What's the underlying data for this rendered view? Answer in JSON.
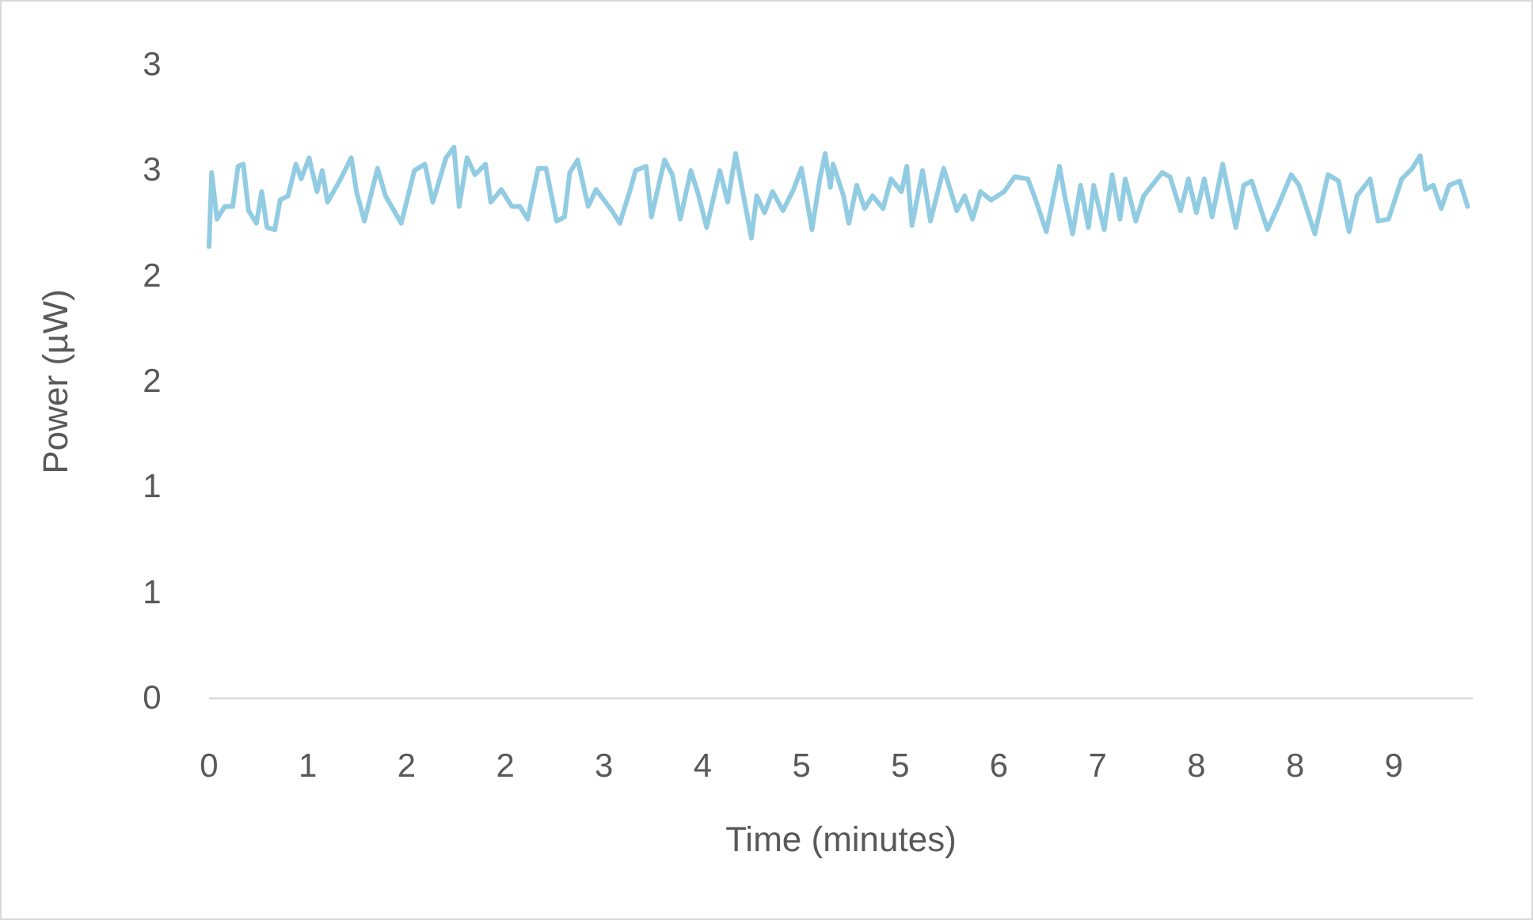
{
  "chart_data": {
    "type": "line",
    "xlabel": "Time (minutes)",
    "ylabel": "Power (µW)",
    "xlim": [
      0,
      9.6
    ],
    "xticks": [
      0,
      {
        "value": 0.75,
        "label": "1"
      },
      {
        "value": 1.5,
        "label": "2"
      },
      {
        "value": 2.25,
        "label": "2"
      },
      3,
      {
        "value": 3.75,
        "label": "4"
      },
      {
        "value": 4.5,
        "label": "5"
      },
      {
        "value": 5.25,
        "label": "5"
      },
      6,
      {
        "value": 6.75,
        "label": "7"
      },
      {
        "value": 7.5,
        "label": "8"
      },
      {
        "value": 8.25,
        "label": "8"
      },
      9
    ],
    "ylim": [
      0,
      3
    ],
    "yticks": [
      0,
      {
        "value": 0.5,
        "label": "1"
      },
      1,
      {
        "value": 1.5,
        "label": "2"
      },
      2,
      {
        "value": 2.5,
        "label": "3"
      },
      3
    ],
    "grid": false,
    "marker": "none",
    "line_style": "solid",
    "series": [
      {
        "color": "#92cce3",
        "x": [
          0,
          0.02,
          0.06,
          0.12,
          0.18,
          0.22,
          0.26,
          0.3,
          0.36,
          0.4,
          0.44,
          0.5,
          0.54,
          0.6,
          0.66,
          0.7,
          0.76,
          0.82,
          0.86,
          0.9,
          1.0,
          1.08,
          1.12,
          1.18,
          1.28,
          1.34,
          1.46,
          1.56,
          1.64,
          1.7,
          1.8,
          1.86,
          1.9,
          1.96,
          2.02,
          2.1,
          2.14,
          2.22,
          2.3,
          2.36,
          2.42,
          2.5,
          2.56,
          2.64,
          2.7,
          2.74,
          2.8,
          2.88,
          2.94,
          3.06,
          3.12,
          3.2,
          3.24,
          3.32,
          3.36,
          3.46,
          3.52,
          3.58,
          3.66,
          3.72,
          3.78,
          3.88,
          3.94,
          4.0,
          4.06,
          4.12,
          4.16,
          4.22,
          4.28,
          4.36,
          4.44,
          4.5,
          4.58,
          4.64,
          4.68,
          4.72,
          4.74,
          4.82,
          4.86,
          4.92,
          4.98,
          5.04,
          5.12,
          5.18,
          5.26,
          5.3,
          5.34,
          5.42,
          5.48,
          5.58,
          5.68,
          5.74,
          5.8,
          5.86,
          5.94,
          6.04,
          6.12,
          6.22,
          6.28,
          6.36,
          6.46,
          6.5,
          6.56,
          6.62,
          6.68,
          6.72,
          6.8,
          6.86,
          6.92,
          6.96,
          7.04,
          7.1,
          7.24,
          7.3,
          7.38,
          7.44,
          7.5,
          7.56,
          7.62,
          7.7,
          7.8,
          7.86,
          7.92,
          8.04,
          8.12,
          8.22,
          8.28,
          8.4,
          8.5,
          8.58,
          8.66,
          8.72,
          8.82,
          8.88,
          8.96,
          9.06,
          9.14,
          9.2,
          9.24,
          9.3,
          9.36,
          9.42,
          9.5,
          9.56
        ],
        "values": [
          2.14,
          2.49,
          2.27,
          2.33,
          2.33,
          2.52,
          2.53,
          2.31,
          2.25,
          2.4,
          2.23,
          2.22,
          2.36,
          2.38,
          2.53,
          2.46,
          2.56,
          2.4,
          2.5,
          2.35,
          2.46,
          2.56,
          2.4,
          2.26,
          2.51,
          2.38,
          2.25,
          2.5,
          2.53,
          2.35,
          2.56,
          2.61,
          2.33,
          2.56,
          2.48,
          2.53,
          2.35,
          2.41,
          2.33,
          2.33,
          2.27,
          2.51,
          2.51,
          2.26,
          2.28,
          2.49,
          2.55,
          2.33,
          2.41,
          2.31,
          2.25,
          2.41,
          2.5,
          2.52,
          2.28,
          2.55,
          2.48,
          2.27,
          2.5,
          2.38,
          2.23,
          2.5,
          2.35,
          2.58,
          2.38,
          2.18,
          2.38,
          2.3,
          2.4,
          2.31,
          2.41,
          2.51,
          2.22,
          2.46,
          2.58,
          2.42,
          2.53,
          2.38,
          2.25,
          2.43,
          2.32,
          2.38,
          2.32,
          2.46,
          2.4,
          2.52,
          2.24,
          2.5,
          2.26,
          2.51,
          2.31,
          2.38,
          2.27,
          2.4,
          2.36,
          2.4,
          2.47,
          2.46,
          2.36,
          2.21,
          2.52,
          2.38,
          2.2,
          2.43,
          2.23,
          2.43,
          2.22,
          2.48,
          2.27,
          2.46,
          2.26,
          2.38,
          2.49,
          2.47,
          2.31,
          2.46,
          2.3,
          2.46,
          2.28,
          2.53,
          2.23,
          2.43,
          2.45,
          2.22,
          2.33,
          2.48,
          2.43,
          2.2,
          2.48,
          2.45,
          2.21,
          2.38,
          2.46,
          2.26,
          2.27,
          2.46,
          2.51,
          2.57,
          2.41,
          2.43,
          2.32,
          2.43,
          2.45,
          2.33
        ]
      }
    ]
  }
}
